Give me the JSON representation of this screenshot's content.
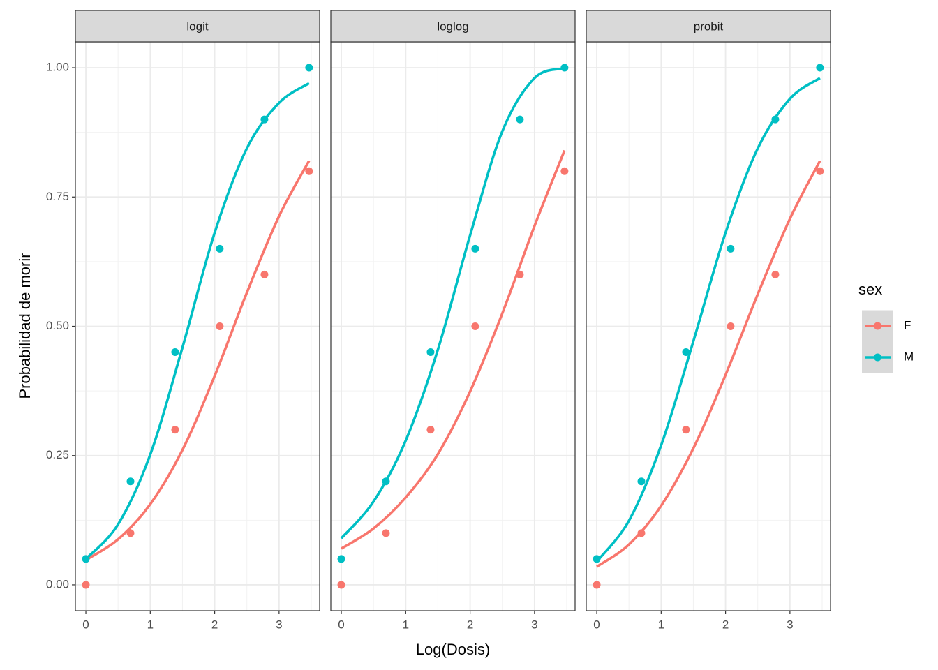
{
  "chart_data": {
    "type": "line",
    "x_label": "Log(Dosis)",
    "y_label": "Probabilidad de morir",
    "legend_title": "sex",
    "legend": "right",
    "grid": true,
    "x": [
      0,
      0.693,
      1.386,
      2.079,
      2.773,
      3.466
    ],
    "fit_x": [
      0,
      0.5,
      1,
      1.5,
      2,
      2.5,
      3,
      3.466
    ],
    "xlim": [
      -0.163,
      3.63
    ],
    "ylim": [
      -0.05,
      1.05
    ],
    "xticks": [
      0,
      1,
      2,
      3
    ],
    "yticks": [
      {
        "value": 0,
        "label": "0.00"
      },
      {
        "value": 0.25,
        "label": "0.25"
      },
      {
        "value": 0.5,
        "label": "0.50"
      },
      {
        "value": 0.75,
        "label": "0.75"
      },
      {
        "value": 1,
        "label": "1.00"
      }
    ],
    "x_minor_ticks": [
      0.5,
      1.5,
      2.5,
      3.5
    ],
    "y_minor_ticks": [
      0.125,
      0.375,
      0.625,
      0.875
    ],
    "series": [
      {
        "name": "F",
        "color": "#F8766D"
      },
      {
        "name": "M",
        "color": "#00BFC4"
      }
    ],
    "panels": [
      {
        "title": "logit",
        "series": [
          {
            "values": [
              0,
              0.1,
              0.3,
              0.5,
              0.6,
              0.8
            ],
            "fit": [
              0.048,
              0.088,
              0.156,
              0.261,
              0.404,
              0.565,
              0.713,
              0.82
            ]
          },
          {
            "values": [
              0.05,
              0.2,
              0.45,
              0.65,
              0.9,
              1.0
            ],
            "fit": [
              0.05,
              0.117,
              0.252,
              0.459,
              0.681,
              0.844,
              0.932,
              0.97
            ]
          }
        ]
      },
      {
        "title": "loglog",
        "series": [
          {
            "values": [
              0,
              0.1,
              0.3,
              0.5,
              0.6,
              0.8
            ],
            "fit": [
              0.07,
              0.109,
              0.169,
              0.253,
              0.374,
              0.525,
              0.694,
              0.84
            ]
          },
          {
            "values": [
              0.05,
              0.2,
              0.45,
              0.65,
              0.9,
              1.0
            ],
            "fit": [
              0.09,
              0.161,
              0.279,
              0.455,
              0.676,
              0.877,
              0.98,
              0.999
            ]
          }
        ]
      },
      {
        "title": "probit",
        "series": [
          {
            "values": [
              0,
              0.1,
              0.3,
              0.5,
              0.6,
              0.8
            ],
            "fit": [
              0.035,
              0.078,
              0.153,
              0.264,
              0.406,
              0.562,
              0.708,
              0.82
            ]
          },
          {
            "values": [
              0.05,
              0.2,
              0.45,
              0.65,
              0.9,
              1.0
            ],
            "fit": [
              0.045,
              0.124,
              0.27,
              0.471,
              0.681,
              0.844,
              0.94,
              0.98
            ]
          }
        ]
      }
    ]
  }
}
